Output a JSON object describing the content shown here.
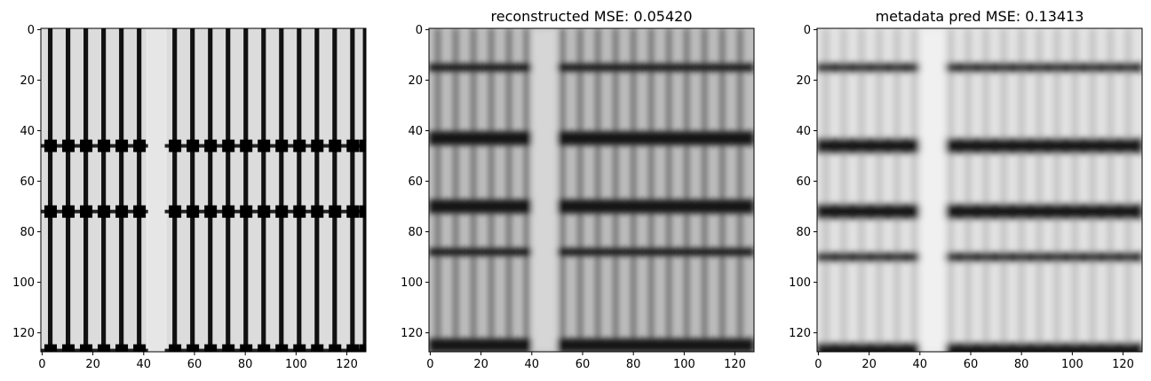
{
  "chart_data": [
    {
      "type": "heatmap",
      "title": "",
      "colormap": "gray",
      "x_ticks": [
        0,
        20,
        40,
        60,
        80,
        100,
        120
      ],
      "y_ticks": [
        0,
        20,
        40,
        60,
        80,
        100,
        120
      ],
      "xlim": [
        0,
        128
      ],
      "ylim": [
        128,
        0
      ],
      "pattern": {
        "vertical_black_lines_x": [
          3,
          10,
          17,
          24,
          31,
          38,
          52,
          59,
          66,
          73,
          80,
          87,
          94,
          101,
          108,
          115,
          122,
          127
        ],
        "gap_x_range": [
          41,
          49
        ],
        "horizontal_dot_rows_y": [
          46,
          72,
          127
        ]
      }
    },
    {
      "type": "heatmap",
      "title": "reconstructed MSE: 0.05420",
      "colormap": "gray",
      "x_ticks": [
        0,
        20,
        40,
        60,
        80,
        100,
        120
      ],
      "y_ticks": [
        0,
        20,
        40,
        60,
        80,
        100,
        120
      ],
      "xlim": [
        0,
        128
      ],
      "ylim": [
        128,
        0
      ],
      "pattern": {
        "dark_bands_y": [
          15,
          43,
          70,
          88,
          125
        ],
        "gap_x_range": [
          40,
          50
        ]
      }
    },
    {
      "type": "heatmap",
      "title": "metadata pred MSE: 0.13413",
      "colormap": "gray",
      "x_ticks": [
        0,
        20,
        40,
        60,
        80,
        100,
        120
      ],
      "y_ticks": [
        0,
        20,
        40,
        60,
        80,
        100,
        120
      ],
      "xlim": [
        0,
        128
      ],
      "ylim": [
        128,
        0
      ],
      "pattern": {
        "dark_bands_y": [
          15,
          46,
          72,
          90,
          127
        ],
        "gap_x_range": [
          40,
          50
        ]
      }
    }
  ]
}
